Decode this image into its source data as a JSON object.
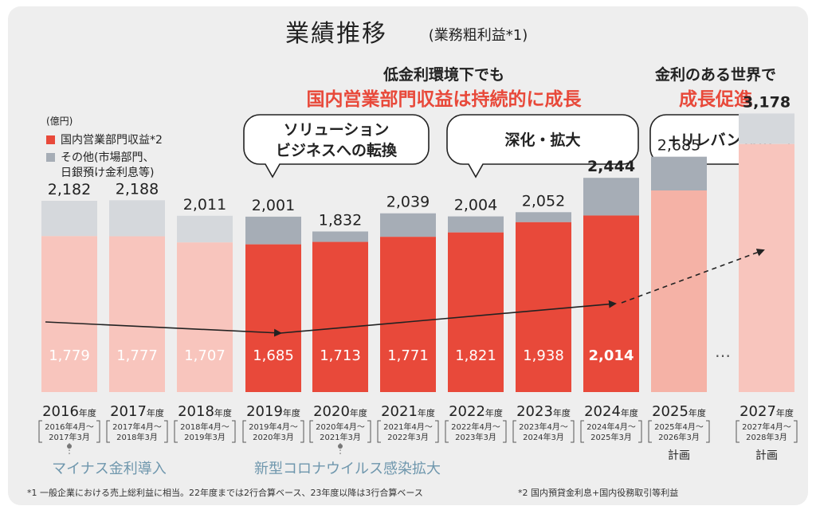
{
  "chart_data": {
    "type": "bar",
    "title": "業績推移",
    "subtitle": "(業務粗利益*1)",
    "unit_label": "(億円)",
    "legend": [
      {
        "label": "国内営業部門収益*2",
        "color": "#e8493a"
      },
      {
        "label": "その他(市場部門、\n日銀預け金利息等)",
        "color": "#a6adb6"
      }
    ],
    "categories": [
      {
        "year": "2016",
        "suffix": "年度",
        "period": "2016年4月〜\n2017年3月",
        "note": ""
      },
      {
        "year": "2017",
        "suffix": "年度",
        "period": "2017年4月〜\n2018年3月",
        "note": ""
      },
      {
        "year": "2018",
        "suffix": "年度",
        "period": "2018年4月〜\n2019年3月",
        "note": ""
      },
      {
        "year": "2019",
        "suffix": "年度",
        "period": "2019年4月〜\n2020年3月",
        "note": ""
      },
      {
        "year": "2020",
        "suffix": "年度",
        "period": "2020年4月〜\n2021年3月",
        "note": ""
      },
      {
        "year": "2021",
        "suffix": "年度",
        "period": "2021年4月〜\n2022年3月",
        "note": ""
      },
      {
        "year": "2022",
        "suffix": "年度",
        "period": "2022年4月〜\n2023年3月",
        "note": ""
      },
      {
        "year": "2023",
        "suffix": "年度",
        "period": "2023年4月〜\n2024年3月",
        "note": ""
      },
      {
        "year": "2024",
        "suffix": "年度",
        "period": "2024年4月〜\n2025年3月",
        "note": ""
      },
      {
        "year": "2025",
        "suffix": "年度",
        "period": "2025年4月〜\n2026年3月",
        "note": "計画"
      },
      {
        "year": "2027",
        "suffix": "年度",
        "period": "2027年4月〜\n2028年3月",
        "note": "計画"
      }
    ],
    "series": [
      {
        "name": "国内営業部門収益*2",
        "values": [
          1779,
          1777,
          1707,
          1685,
          1713,
          1771,
          1821,
          1938,
          2014,
          null,
          null
        ]
      },
      {
        "name": "その他(市場部門、日銀預け金利息等)",
        "values": [
          403,
          411,
          304,
          316,
          119,
          268,
          183,
          114,
          430,
          null,
          null
        ]
      }
    ],
    "totals": [
      "2,182",
      "2,188",
      "2,011",
      "2,001",
      "1,832",
      "2,039",
      "2,004",
      "2,052",
      "2,444",
      "2,685",
      "3,178"
    ],
    "total_values": [
      2182,
      2188,
      2011,
      2001,
      1832,
      2039,
      2004,
      2052,
      2444,
      2685,
      3178
    ],
    "domestic_labels": [
      "1,779",
      "1,777",
      "1,707",
      "1,685",
      "1,713",
      "1,771",
      "1,821",
      "1,938",
      "2,014",
      "",
      ""
    ],
    "domestic_values": [
      1779,
      1777,
      1707,
      1685,
      1713,
      1771,
      1821,
      1938,
      2014,
      2300,
      2830
    ],
    "ylim": [
      0,
      3500
    ],
    "ellipsis": "…",
    "phases": [
      {
        "headline_lines": [
          "低金利環境下でも",
          "国内営業部門収益は持続的に成長"
        ],
        "bubbles": [
          "ソリューション\nビジネスへの転換",
          "深化・拡大"
        ]
      },
      {
        "headline_lines": [
          "金利のある世界で",
          "成長促進"
        ],
        "bubbles": [
          "+リレバン強化"
        ]
      }
    ],
    "events": [
      {
        "label": "マイナス金利導入",
        "at": 0
      },
      {
        "label": "新型コロナウイルス感染拡大",
        "at": 4
      }
    ],
    "footnotes": [
      "*1 一般企業における売上総利益に相当。22年度までは2行合算ベース、23年度以降は3行合算ベース",
      "*2 国内預貸金利息+国内役務取引等利益"
    ],
    "colors": {
      "domestic_actual": "#e8493a",
      "domestic_light": "#f8c5bd",
      "domestic_plan": "#f5b2a6",
      "other_actual": "#a6adb6",
      "other_light": "#d5d8dc",
      "headline_red": "#e8493a",
      "event_blue": "#6f97ad"
    }
  }
}
